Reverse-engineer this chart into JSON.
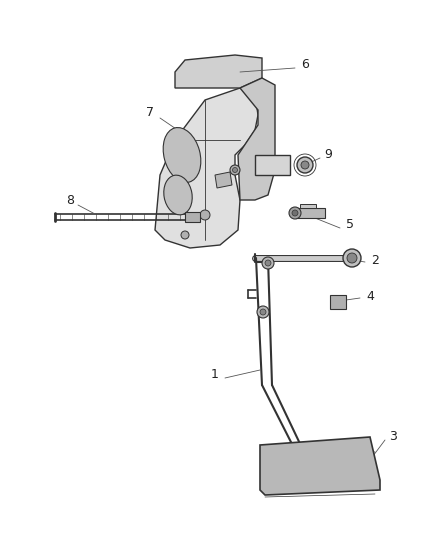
{
  "background_color": "#ffffff",
  "lc": "#555555",
  "lc2": "#333333",
  "label_color": "#222222",
  "label_fontsize": 9,
  "figsize": [
    4.38,
    5.33
  ],
  "dpi": 100
}
